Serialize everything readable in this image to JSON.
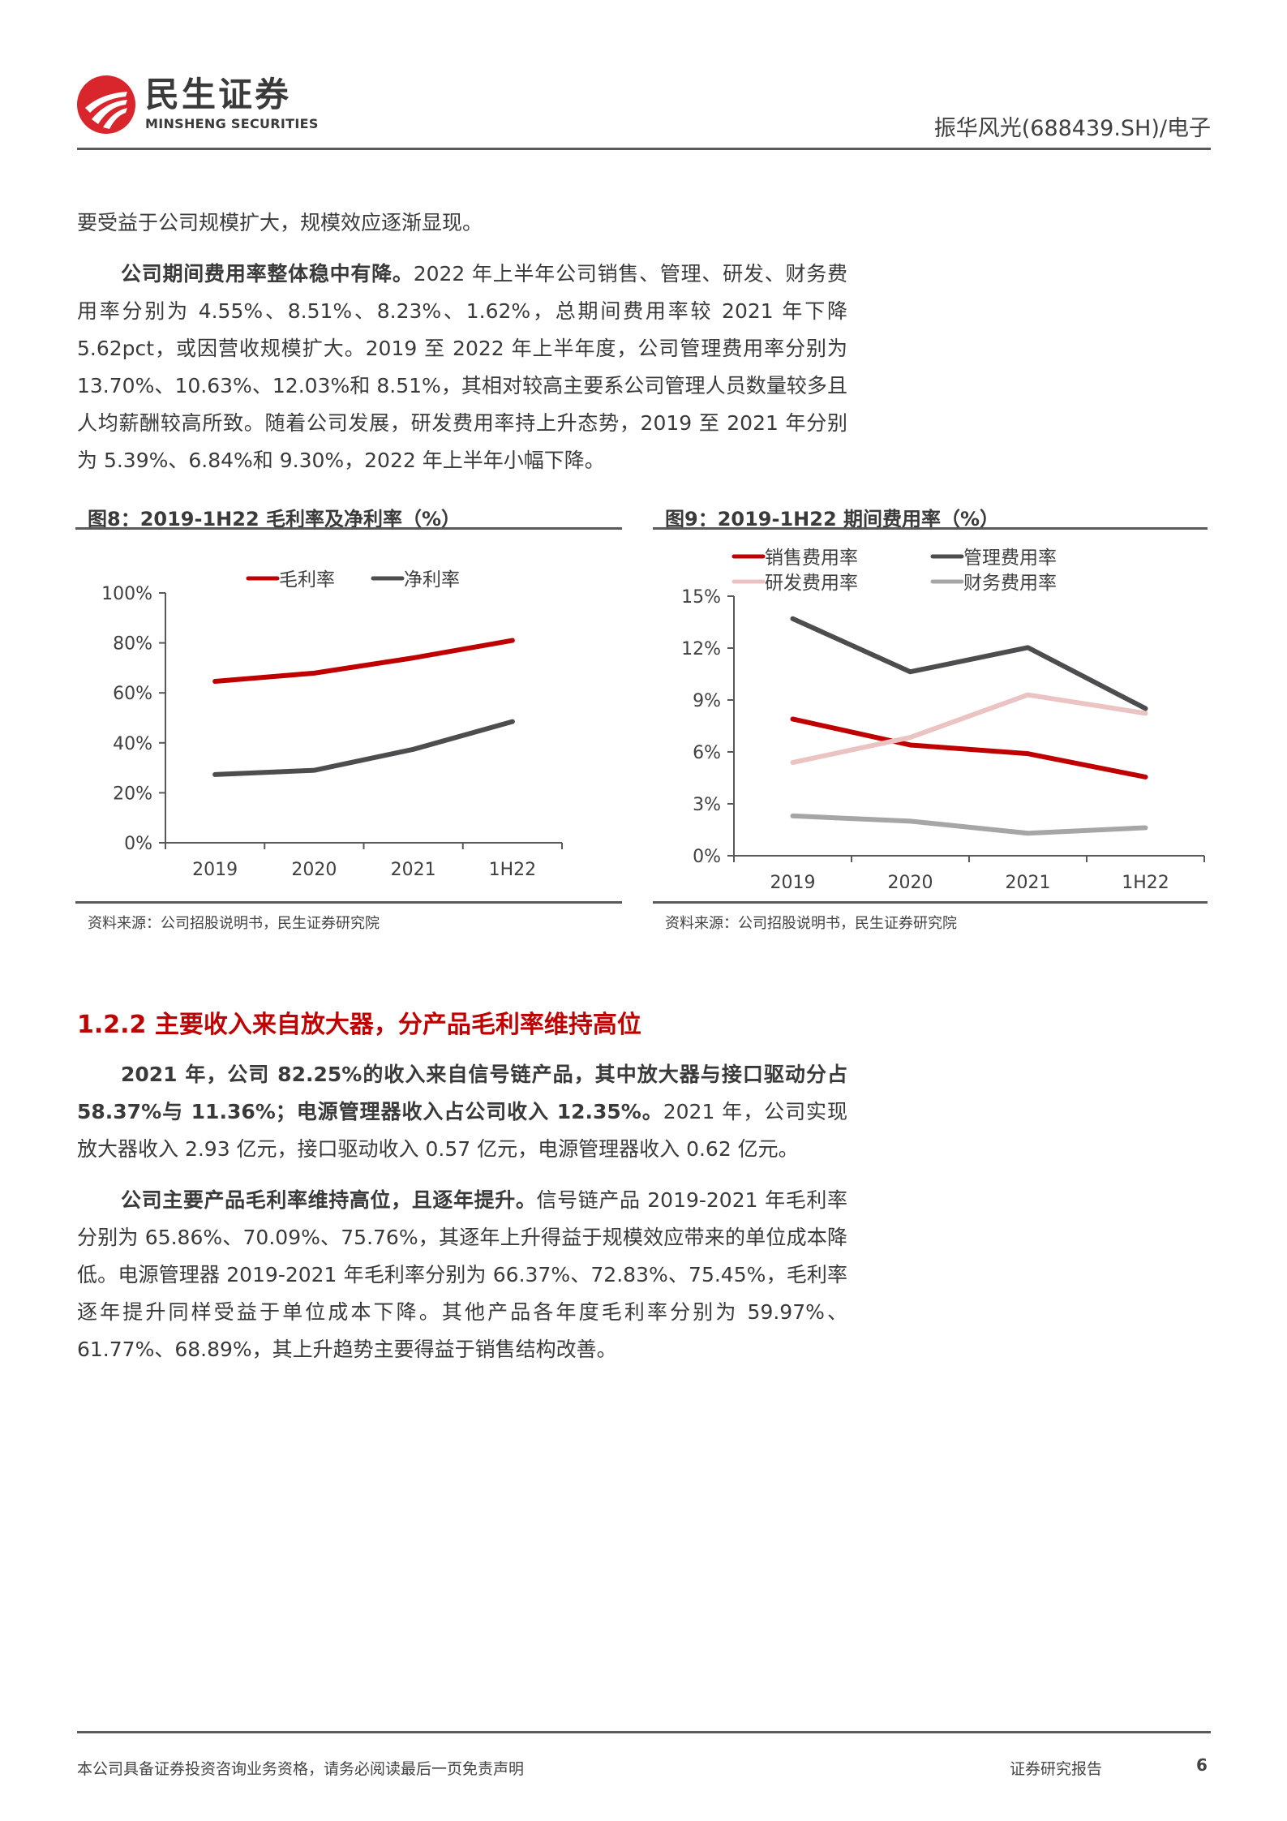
{
  "header": {
    "logo_cn": "民生证券",
    "logo_en": "MINSHENG SECURITIES",
    "report_ref": "振华风光(688439.SH)/电子"
  },
  "body": {
    "para1": "要受益于公司规模扩大，规模效应逐渐显现。",
    "para2_bold": "公司期间费用率整体稳中有降。",
    "para2_text": "2022 年上半年公司销售、管理、研发、财务费用率分别为 4.55%、8.51%、8.23%、1.62%，总期间费用率较 2021 年下降 5.62pct，或因营收规模扩大。2019 至 2022 年上半年度，公司管理费用率分别为 13.70%、10.63%、12.03%和 8.51%，其相对较高主要系公司管理人员数量较多且人均薪酬较高所致。随着公司发展，研发费用率持上升态势，2019 至 2021 年分别为 5.39%、6.84%和 9.30%，2022 年上半年小幅下降。",
    "section_heading": "1.2.2 主要收入来自放大器，分产品毛利率维持高位",
    "para3_bold": "2021 年，公司 82.25%的收入来自信号链产品，其中放大器与接口驱动分占 58.37%与 11.36%；电源管理器收入占公司收入 12.35%。",
    "para3_text": "2021 年，公司实现放大器收入 2.93 亿元，接口驱动收入 0.57 亿元，电源管理器收入 0.62 亿元。",
    "para4_bold": "公司主要产品毛利率维持高位，且逐年提升。",
    "para4_text": "信号链产品 2019-2021 年毛利率分别为 65.86%、70.09%、75.76%，其逐年上升得益于规模效应带来的单位成本降低。电源管理器 2019-2021 年毛利率分别为 66.37%、72.83%、75.45%，毛利率逐年提升同样受益于单位成本下降。其他产品各年度毛利率分别为 59.97%、61.77%、68.89%，其上升趋势主要得益于销售结构改善。"
  },
  "figures": [
    {
      "title": "图8：2019-1H22 毛利率及净利率（%）",
      "source": "资料来源：公司招股说明书，民生证券研究院"
    },
    {
      "title": "图9：2019-1H22 期间费用率（%）",
      "source": "资料来源：公司招股说明书，民生证券研究院"
    }
  ],
  "chart_data": [
    {
      "type": "line",
      "title": "图8：2019-1H22 毛利率及净利率（%）",
      "categories": [
        "2019",
        "2020",
        "2021",
        "1H22"
      ],
      "series": [
        {
          "name": "毛利率",
          "color": "#C00000",
          "values": [
            64.6,
            67.9,
            74.0,
            81.0
          ]
        },
        {
          "name": "净利率",
          "color": "#4D4D4F",
          "values": [
            27.3,
            29.0,
            37.4,
            48.5
          ]
        }
      ],
      "yticks": [
        "0%",
        "20%",
        "40%",
        "60%",
        "80%",
        "100%"
      ],
      "ylim": [
        0,
        100
      ],
      "xlabel": "",
      "ylabel": "",
      "legend_position": "top",
      "grid": false
    },
    {
      "type": "line",
      "title": "图9：2019-1H22 期间费用率（%）",
      "categories": [
        "2019",
        "2020",
        "2021",
        "1H22"
      ],
      "series": [
        {
          "name": "销售费用率",
          "color": "#C00000",
          "values": [
            7.9,
            6.4,
            5.9,
            4.55
          ]
        },
        {
          "name": "管理费用率",
          "color": "#4D4D4F",
          "values": [
            13.7,
            10.63,
            12.03,
            8.51
          ]
        },
        {
          "name": "研发费用率",
          "color": "#EBC3C3",
          "values": [
            5.39,
            6.84,
            9.3,
            8.23
          ]
        },
        {
          "name": "财务费用率",
          "color": "#A6A6A6",
          "values": [
            2.3,
            2.0,
            1.3,
            1.62
          ]
        }
      ],
      "yticks": [
        "0%",
        "3%",
        "6%",
        "9%",
        "12%",
        "15%"
      ],
      "ylim": [
        0,
        15
      ],
      "xlabel": "",
      "ylabel": "",
      "legend_position": "top",
      "grid": false
    }
  ],
  "footer": {
    "disclaimer": "本公司具备证券投资咨询业务资格，请务必阅读最后一页免责声明",
    "doc_type": "证券研究报告",
    "page_number": "6"
  }
}
